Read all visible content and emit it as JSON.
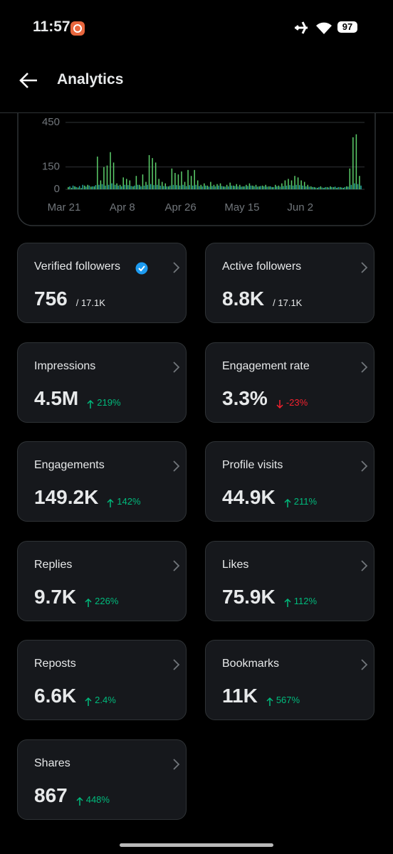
{
  "status_bar": {
    "time": "11:57",
    "battery": "97"
  },
  "header": {
    "title": "Analytics"
  },
  "chart_data": {
    "type": "bar",
    "categories": [
      "Mar 21",
      null,
      null,
      null,
      null,
      null,
      null,
      null,
      null,
      null,
      null,
      null,
      null,
      null,
      null,
      null,
      null,
      null,
      "Apr 8",
      null,
      null,
      null,
      null,
      null,
      null,
      null,
      null,
      null,
      null,
      null,
      null,
      null,
      null,
      null,
      null,
      null,
      "Apr 26",
      null,
      null,
      null,
      null,
      null,
      null,
      null,
      null,
      null,
      null,
      null,
      null,
      null,
      null,
      null,
      null,
      null,
      null,
      "May 15",
      null,
      null,
      null,
      null,
      null,
      null,
      null,
      null,
      null,
      null,
      null,
      null,
      null,
      null,
      null,
      null,
      null,
      "Jun 2",
      null,
      null,
      null,
      null,
      null,
      null,
      null,
      null,
      null,
      null,
      null,
      null,
      null,
      null,
      null,
      null,
      null
    ],
    "series": [
      {
        "color": "#5ccf6b",
        "values": [
          15,
          10,
          20,
          12,
          8,
          25,
          30,
          18,
          20,
          220,
          60,
          150,
          160,
          250,
          180,
          40,
          30,
          80,
          70,
          60,
          20,
          90,
          30,
          100,
          50,
          230,
          210,
          180,
          70,
          50,
          40,
          20,
          140,
          110,
          100,
          120,
          50,
          130,
          90,
          130,
          60,
          30,
          40,
          25,
          50,
          30,
          35,
          40,
          20,
          30,
          45,
          25,
          35,
          30,
          20,
          30,
          40,
          25,
          30,
          20,
          25,
          30,
          20,
          15,
          30,
          25,
          40,
          60,
          70,
          60,
          90,
          80,
          60,
          50,
          30,
          20,
          15,
          10,
          20,
          10,
          15,
          20,
          15,
          10,
          15,
          10,
          20,
          140,
          350,
          370,
          90
        ]
      },
      {
        "color": "#23a6a0",
        "values": [
          20,
          25,
          15,
          22,
          30,
          18,
          25,
          20,
          28,
          30,
          35,
          25,
          30,
          40,
          30,
          25,
          20,
          30,
          28,
          22,
          25,
          30,
          20,
          25,
          30,
          35,
          28,
          30,
          25,
          22,
          20,
          25,
          30,
          28,
          25,
          30,
          22,
          28,
          25,
          30,
          22,
          20,
          25,
          18,
          22,
          20,
          25,
          22,
          18,
          20,
          25,
          22,
          20,
          18,
          20,
          22,
          25,
          20,
          18,
          22,
          20,
          18,
          20,
          15,
          20,
          18,
          22,
          25,
          28,
          25,
          30,
          28,
          25,
          20,
          18,
          15,
          12,
          15,
          12,
          15,
          12,
          15,
          18,
          15,
          12,
          15,
          18,
          30,
          40,
          35,
          25
        ]
      }
    ],
    "ylim": [
      0,
      450
    ],
    "yticks": [
      0,
      150,
      450
    ],
    "grid": true
  },
  "cards": [
    {
      "title": "Verified followers",
      "value": "756",
      "sub": "/ 17.1K",
      "verified": true
    },
    {
      "title": "Active followers",
      "value": "8.8K",
      "sub": "/ 17.1K"
    },
    {
      "title": "Impressions",
      "value": "4.5M",
      "sub": "219%",
      "trend": "up"
    },
    {
      "title": "Engagement rate",
      "value": "3.3%",
      "sub": "-23%",
      "trend": "down"
    },
    {
      "title": "Engagements",
      "value": "149.2K",
      "sub": "142%",
      "trend": "up"
    },
    {
      "title": "Profile visits",
      "value": "44.9K",
      "sub": "211%",
      "trend": "up"
    },
    {
      "title": "Replies",
      "value": "9.7K",
      "sub": "226%",
      "trend": "up"
    },
    {
      "title": "Likes",
      "value": "75.9K",
      "sub": "112%",
      "trend": "up"
    },
    {
      "title": "Reposts",
      "value": "6.6K",
      "sub": "2.4%",
      "trend": "up"
    },
    {
      "title": "Bookmarks",
      "value": "11K",
      "sub": "567%",
      "trend": "up"
    },
    {
      "title": "Shares",
      "value": "867",
      "sub": "448%",
      "trend": "up"
    }
  ]
}
